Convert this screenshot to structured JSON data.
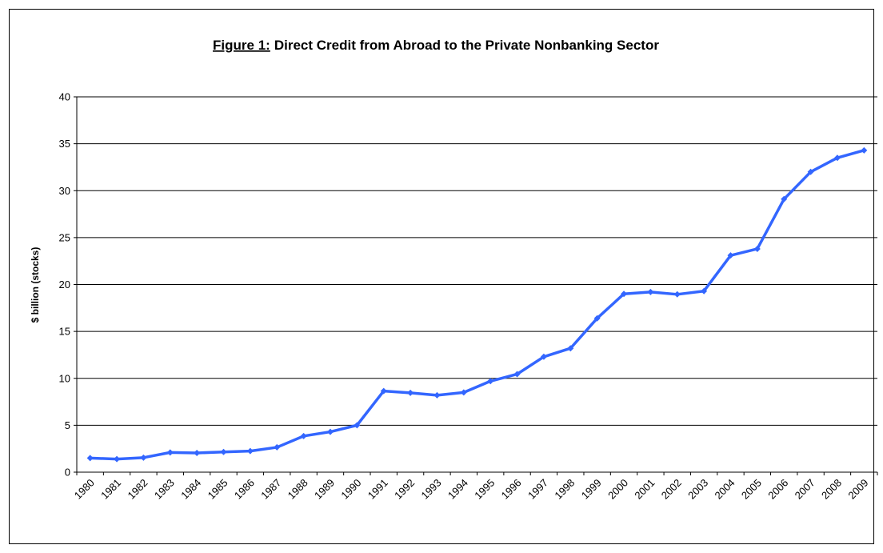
{
  "chart_data": {
    "type": "line",
    "title_label": "Figure 1:",
    "title": "Direct Credit from Abroad to the Private Nonbanking Sector",
    "y_label": "$ billion (stocks)",
    "categories": [
      "1980",
      "1981",
      "1982",
      "1983",
      "1984",
      "1985",
      "1986",
      "1987",
      "1988",
      "1989",
      "1990",
      "1991",
      "1992",
      "1993",
      "1994",
      "1995",
      "1996",
      "1997",
      "1998",
      "1999",
      "2000",
      "2001",
      "2002",
      "2003",
      "2004",
      "2005",
      "2006",
      "2007",
      "2008",
      "2009"
    ],
    "series": [
      {
        "color": "#3366ff",
        "values": [
          1.5,
          1.4,
          1.55,
          2.1,
          2.05,
          2.15,
          2.25,
          2.65,
          3.85,
          4.3,
          5.0,
          8.65,
          8.45,
          8.2,
          8.5,
          9.7,
          10.45,
          12.3,
          13.2,
          16.4,
          19.0,
          19.2,
          18.95,
          19.3,
          23.1,
          23.8,
          29.1,
          32.0,
          33.5,
          34.3
        ]
      }
    ],
    "ylim": [
      0,
      40
    ],
    "yticks": [
      0,
      5,
      10,
      15,
      20,
      25,
      30,
      35,
      40
    ],
    "grid": true
  }
}
